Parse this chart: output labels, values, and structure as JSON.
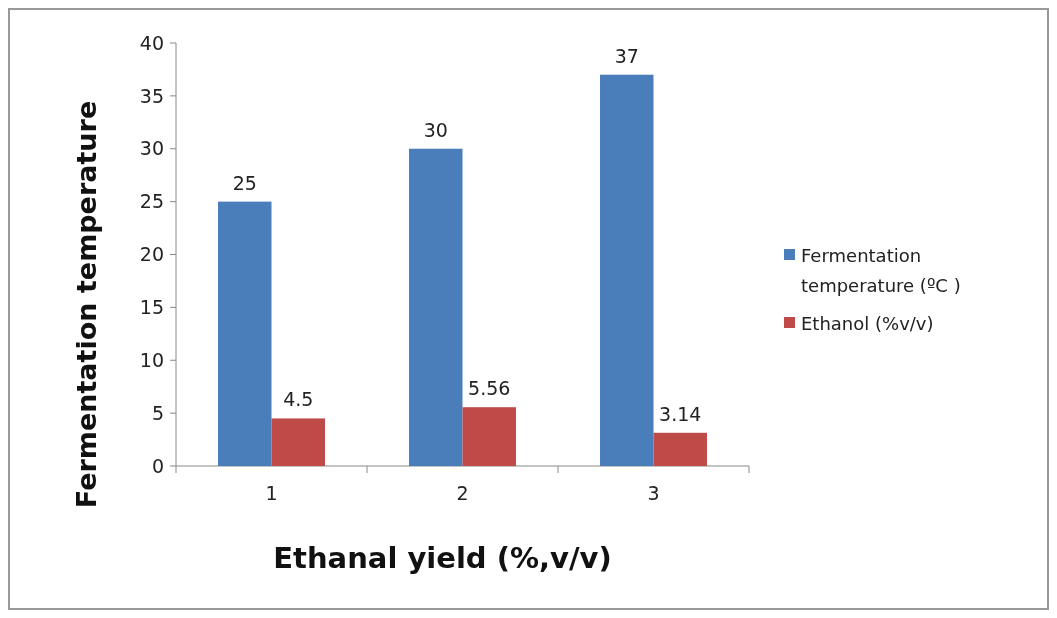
{
  "chart_data": {
    "type": "bar",
    "xlabel": "Ethanal yield (%,v/v)",
    "ylabel": "Fermentation temperature",
    "categories": [
      "1",
      "2",
      "3"
    ],
    "series": [
      {
        "name": "Fermentation temperature (ºC )",
        "color": "#4a7ebb",
        "values": [
          25,
          30,
          37
        ]
      },
      {
        "name": "Ethanol (%v/v)",
        "color": "#be4b48",
        "values": [
          4.5,
          5.56,
          3.14
        ]
      }
    ],
    "ylim": [
      0,
      40
    ],
    "yticks": [
      0,
      5,
      10,
      15,
      20,
      25,
      30,
      35,
      40
    ],
    "data_labels": true,
    "legend": "right",
    "grid": false
  }
}
